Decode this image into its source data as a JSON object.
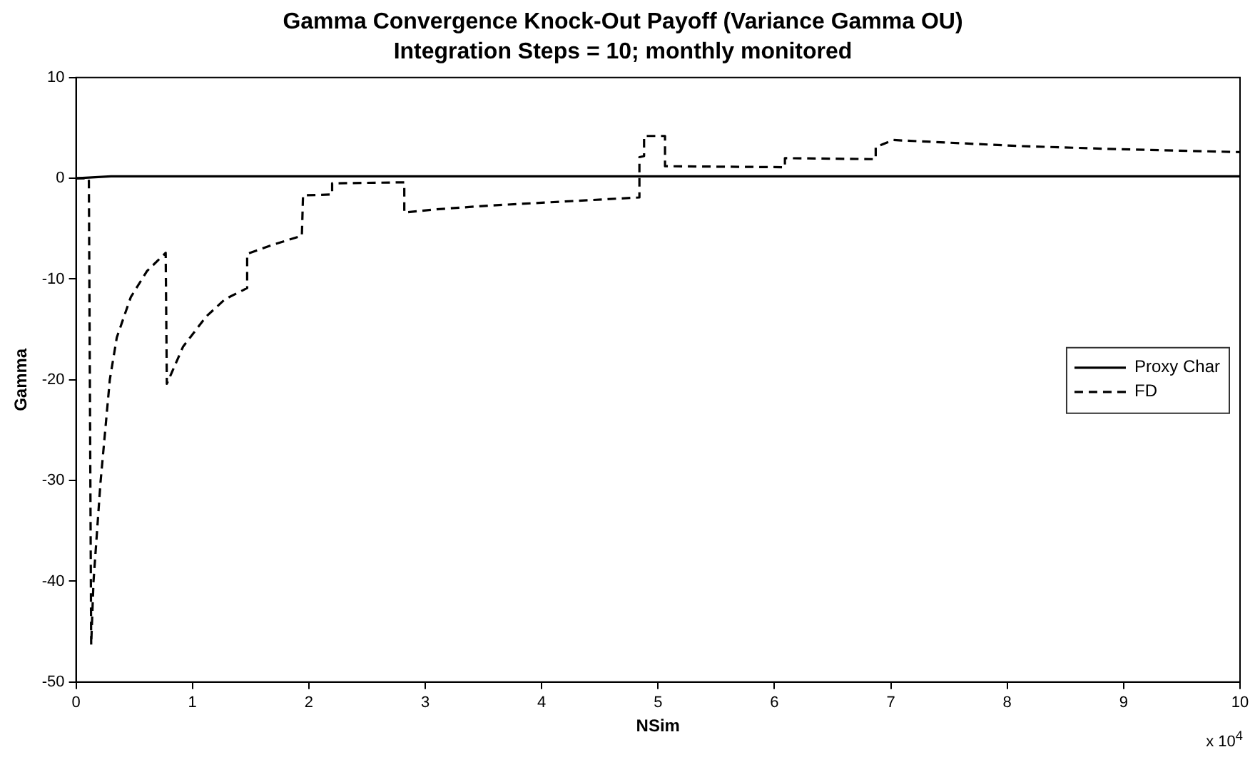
{
  "chart_data": {
    "type": "line",
    "title": "Gamma Convergence Knock-Out Payoff (Variance Gamma OU)",
    "subtitle": "Integration Steps = 10; monthly monitored",
    "xlabel": "NSim",
    "ylabel": "Gamma",
    "xlim": [
      0,
      10
    ],
    "xticks": [
      0,
      1,
      2,
      3,
      4,
      5,
      6,
      7,
      8,
      9,
      10
    ],
    "ylim": [
      -50,
      10
    ],
    "yticks": [
      -50,
      -40,
      -30,
      -20,
      -10,
      0,
      10
    ],
    "grid": false,
    "legend": "right",
    "marker": "none",
    "annotations": [
      "x 10$^{4}$"
    ],
    "series": [
      {
        "name": "Proxy Char",
        "color": "#000000",
        "line_style": "solid",
        "x": [
          0,
          0.3,
          10
        ],
        "values": [
          0,
          0.2,
          0.2
        ]
      },
      {
        "name": "FD",
        "color": "#000000",
        "line_style": "dashed",
        "x": [
          0,
          0.11,
          0.13,
          0.15,
          0.21,
          0.29,
          0.35,
          0.47,
          0.61,
          0.77,
          0.78,
          0.92,
          1.12,
          1.28,
          1.47,
          1.47,
          1.69,
          1.94,
          1.95,
          2.2,
          2.2,
          2.82,
          2.82,
          3.07,
          3.56,
          4.84,
          4.84,
          4.88,
          4.88,
          5.06,
          5.06,
          6.09,
          6.09,
          6.87,
          6.87,
          7.02,
          8.11,
          8.93,
          10
        ],
        "values": [
          0,
          0,
          -46.3,
          -40,
          -30.2,
          -20,
          -15.8,
          -11.8,
          -9.2,
          -7.4,
          -20.4,
          -16.7,
          -13.7,
          -12.0,
          -10.9,
          -7.5,
          -6.6,
          -5.7,
          -1.7,
          -1.6,
          -0.5,
          -0.4,
          -3.4,
          -3.1,
          -2.7,
          -1.9,
          2.1,
          2.2,
          4.2,
          4.2,
          1.2,
          1.1,
          2.0,
          1.9,
          3.1,
          3.8,
          3.2,
          2.9,
          2.6
        ]
      }
    ]
  }
}
